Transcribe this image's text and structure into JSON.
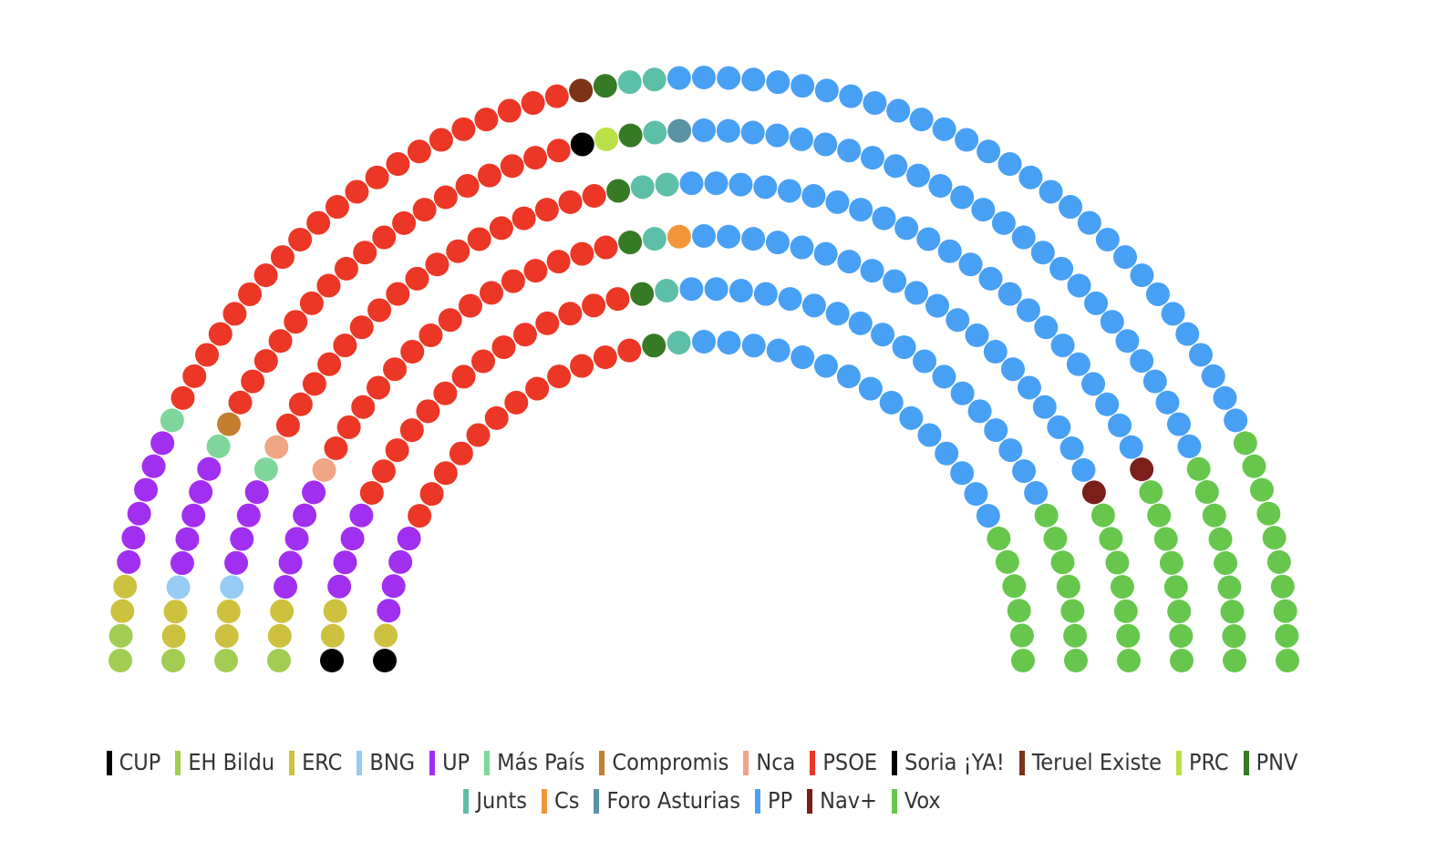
{
  "chart_data": {
    "type": "parliament",
    "parties": [
      {
        "name": "CUP",
        "color": "#000000",
        "seats": 2
      },
      {
        "name": "EH Bildu",
        "color": "#a1cd52",
        "seats": 5
      },
      {
        "name": "ERC",
        "color": "#cdc13f",
        "seats": 11
      },
      {
        "name": "BNG",
        "color": "#96cbf3",
        "seats": 2
      },
      {
        "name": "UP",
        "color": "#a12ff0",
        "seats": 28
      },
      {
        "name": "Más País",
        "color": "#7fd69b",
        "seats": 3
      },
      {
        "name": "Compromis",
        "color": "#c47e30",
        "seats": 1
      },
      {
        "name": "Nca",
        "color": "#f2a585",
        "seats": 2
      },
      {
        "name": "PSOE",
        "color": "#ec3726",
        "seats": 97
      },
      {
        "name": "Soria ¡YA!",
        "color": "#000000",
        "seats": 1
      },
      {
        "name": "Teruel Existe",
        "color": "#7d3318",
        "seats": 1
      },
      {
        "name": "PRC",
        "color": "#b9e046",
        "seats": 1
      },
      {
        "name": "PNV",
        "color": "#367a25",
        "seats": 6
      },
      {
        "name": "Junts",
        "color": "#5dbfa8",
        "seats": 8
      },
      {
        "name": "Cs",
        "color": "#f1953b",
        "seats": 1
      },
      {
        "name": "Foro Asturias",
        "color": "#5b93a5",
        "seats": 1
      },
      {
        "name": "PP",
        "color": "#48a0f5",
        "seats": 131
      },
      {
        "name": "Nav+",
        "color": "#7b1f1a",
        "seats": 2
      },
      {
        "name": "Vox",
        "color": "#67c74d",
        "seats": 47
      }
    ]
  }
}
